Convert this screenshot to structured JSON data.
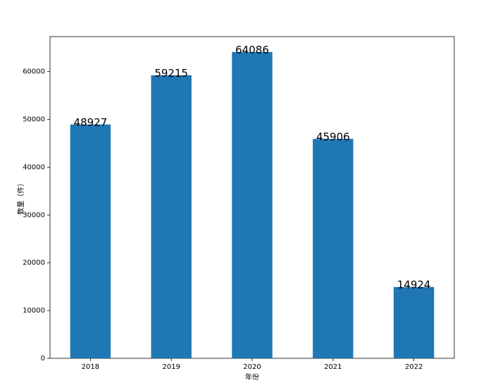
{
  "chart_data": {
    "type": "bar",
    "x_label": "年份",
    "y_label": "数量（件）",
    "categories": [
      "2018",
      "2019",
      "2020",
      "2021",
      "2022"
    ],
    "values": [
      48927,
      59215,
      64086,
      45906,
      14924
    ],
    "color": "#1f77b4",
    "ylim": [
      0,
      67300
    ],
    "yticks": [
      0,
      10000,
      20000,
      30000,
      40000,
      50000,
      60000
    ],
    "grid": false
  }
}
